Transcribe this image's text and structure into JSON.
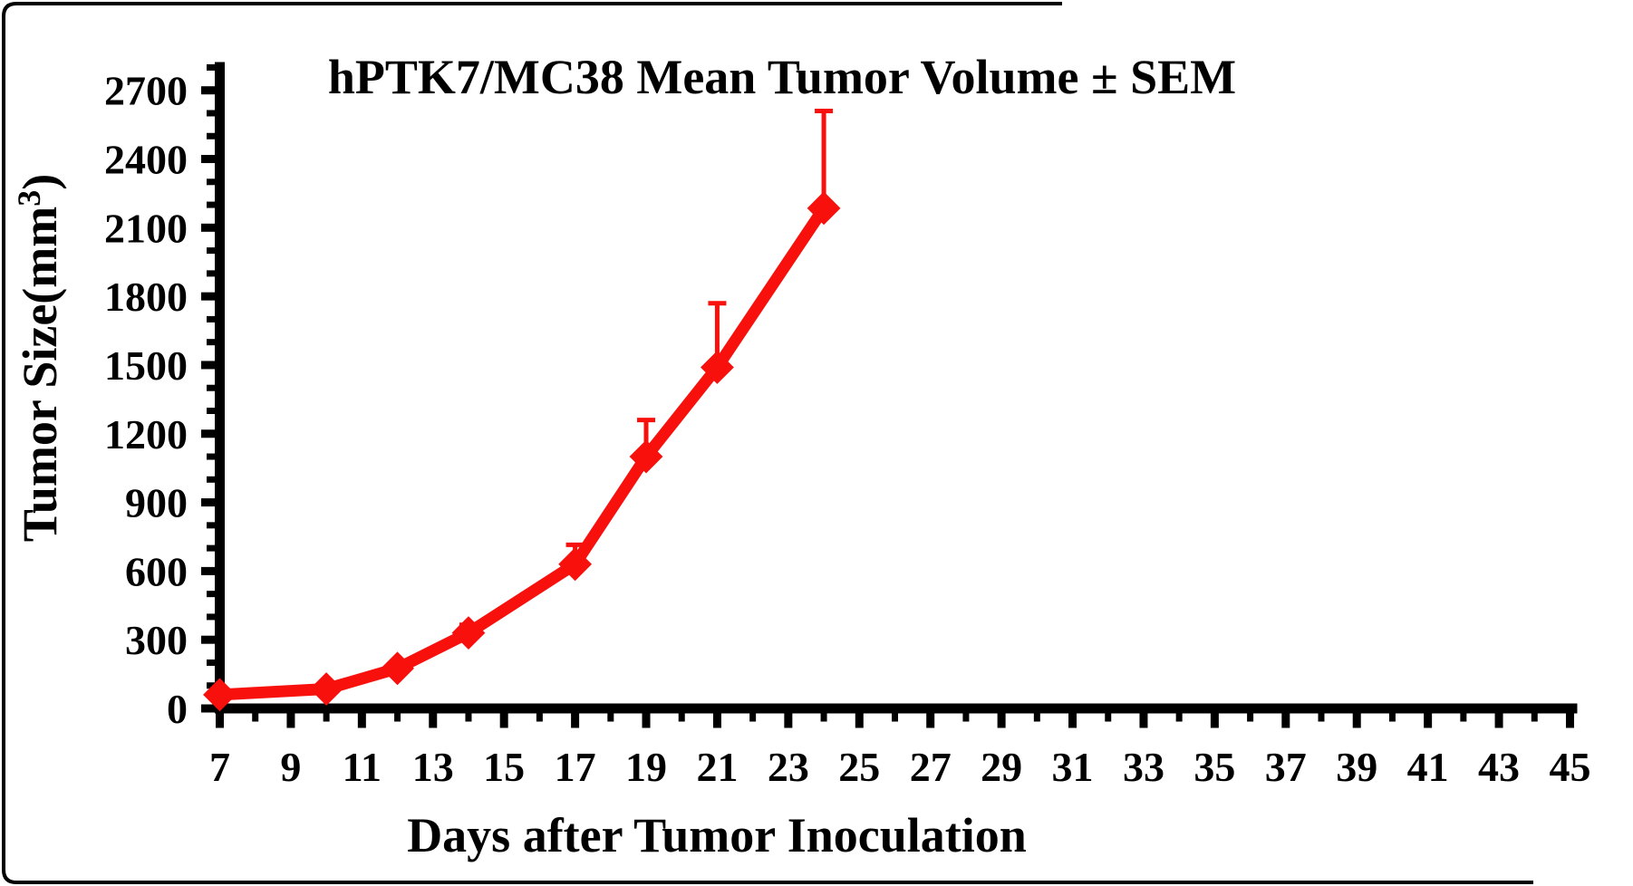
{
  "figure": {
    "background": "#ffffff",
    "border_color": "#000000",
    "axis_color": "#000000",
    "text_color": "#000000"
  },
  "chart_data": {
    "type": "line",
    "title": "hPTK7/MC38 Mean Tumor Volume ± SEM",
    "xlabel": "Days after Tumor Inoculation",
    "ylabel": {
      "text": "Tumor Size(mm",
      "sup": "3",
      "after": ")"
    },
    "grid": false,
    "legend": null,
    "x_axis": {
      "min": 7,
      "max": 45,
      "major_tick_step": 2,
      "minor_tick_step": 1,
      "tick_labels": [
        7,
        9,
        11,
        13,
        15,
        17,
        19,
        21,
        23,
        25,
        27,
        29,
        31,
        33,
        35,
        37,
        39,
        41,
        43,
        45
      ]
    },
    "y_axis": {
      "min": 0,
      "max": 2800,
      "major_tick_step": 300,
      "minor_tick_step": 100,
      "tick_labels": [
        0,
        300,
        600,
        900,
        1200,
        1500,
        1800,
        2100,
        2400,
        2700
      ]
    },
    "series": [
      {
        "name": "hPTK7/MC38",
        "color": "#f8100c",
        "marker": "diamond",
        "error_bars": "upper",
        "points": [
          {
            "day": 7,
            "mean": 60,
            "sem": 10
          },
          {
            "day": 10,
            "mean": 85,
            "sem": 12
          },
          {
            "day": 12,
            "mean": 175,
            "sem": 20
          },
          {
            "day": 14,
            "mean": 330,
            "sem": 35
          },
          {
            "day": 17,
            "mean": 630,
            "sem": 85
          },
          {
            "day": 19,
            "mean": 1100,
            "sem": 160
          },
          {
            "day": 21,
            "mean": 1490,
            "sem": 280
          },
          {
            "day": 24,
            "mean": 2185,
            "sem": 425
          }
        ]
      }
    ]
  }
}
